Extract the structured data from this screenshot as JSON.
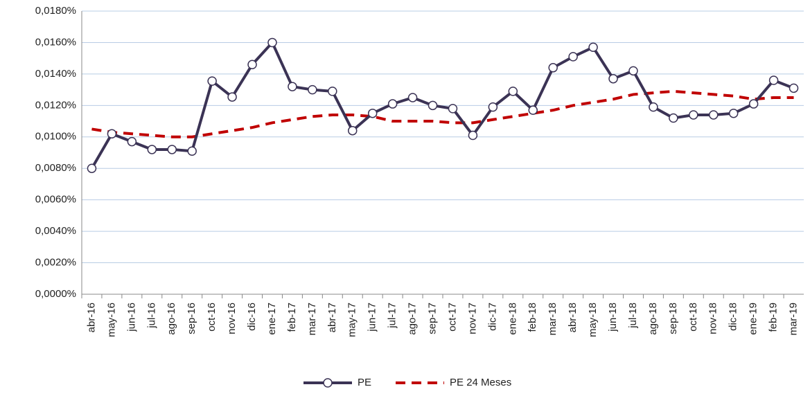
{
  "chart_data": {
    "type": "line",
    "categories": [
      "abr-16",
      "may-16",
      "jun-16",
      "jul-16",
      "ago-16",
      "sep-16",
      "oct-16",
      "nov-16",
      "dic-16",
      "ene-17",
      "feb-17",
      "mar-17",
      "abr-17",
      "may-17",
      "jun-17",
      "jul-17",
      "ago-17",
      "sep-17",
      "oct-17",
      "nov-17",
      "dic-17",
      "ene-18",
      "feb-18",
      "mar-18",
      "abr-18",
      "may-18",
      "jun-18",
      "jul-18",
      "ago-18",
      "sep-18",
      "oct-18",
      "nov-18",
      "dic-18",
      "ene-19",
      "feb-19",
      "mar-19"
    ],
    "series": [
      {
        "name": "PE",
        "color": "#3b3355",
        "dashed": false,
        "marker": "circle",
        "values": [
          0.008,
          0.0102,
          0.0097,
          0.0092,
          0.0092,
          0.0091,
          0.01355,
          0.01254,
          0.0146,
          0.016,
          0.0132,
          0.013,
          0.0129,
          0.0104,
          0.0115,
          0.0121,
          0.0125,
          0.012,
          0.0118,
          0.0101,
          0.0119,
          0.0129,
          0.0117,
          0.0144,
          0.0151,
          0.0157,
          0.0137,
          0.0142,
          0.0119,
          0.0112,
          0.0114,
          0.0114,
          0.0115,
          0.0121,
          0.0136,
          0.0131
        ]
      },
      {
        "name": "PE 24 Meses",
        "color": "#c00000",
        "dashed": true,
        "marker": "none",
        "values": [
          0.0105,
          0.0103,
          0.0102,
          0.0101,
          0.01,
          0.01,
          0.0102,
          0.0104,
          0.0106,
          0.0109,
          0.0111,
          0.0113,
          0.0114,
          0.0114,
          0.0113,
          0.011,
          0.011,
          0.011,
          0.0109,
          0.0109,
          0.0111,
          0.0113,
          0.0115,
          0.0117,
          0.012,
          0.0122,
          0.0124,
          0.0127,
          0.0128,
          0.0129,
          0.0128,
          0.0127,
          0.0126,
          0.0124,
          0.0125,
          0.0125
        ]
      }
    ],
    "ylim": [
      0,
      0.018
    ],
    "yticks": [
      {
        "value": 0,
        "label": "0,0000%"
      },
      {
        "value": 0.002,
        "label": "0,0020%"
      },
      {
        "value": 0.004,
        "label": "0,0040%"
      },
      {
        "value": 0.006,
        "label": "0,0060%"
      },
      {
        "value": 0.008,
        "label": "0,0080%"
      },
      {
        "value": 0.01,
        "label": "0,0100%"
      },
      {
        "value": 0.012,
        "label": "0,0120%"
      },
      {
        "value": 0.014,
        "label": "0,0140%"
      },
      {
        "value": 0.016,
        "label": "0,0160%"
      },
      {
        "value": 0.018,
        "label": "0,0180%"
      }
    ],
    "grid": true,
    "legend": "bottom"
  }
}
